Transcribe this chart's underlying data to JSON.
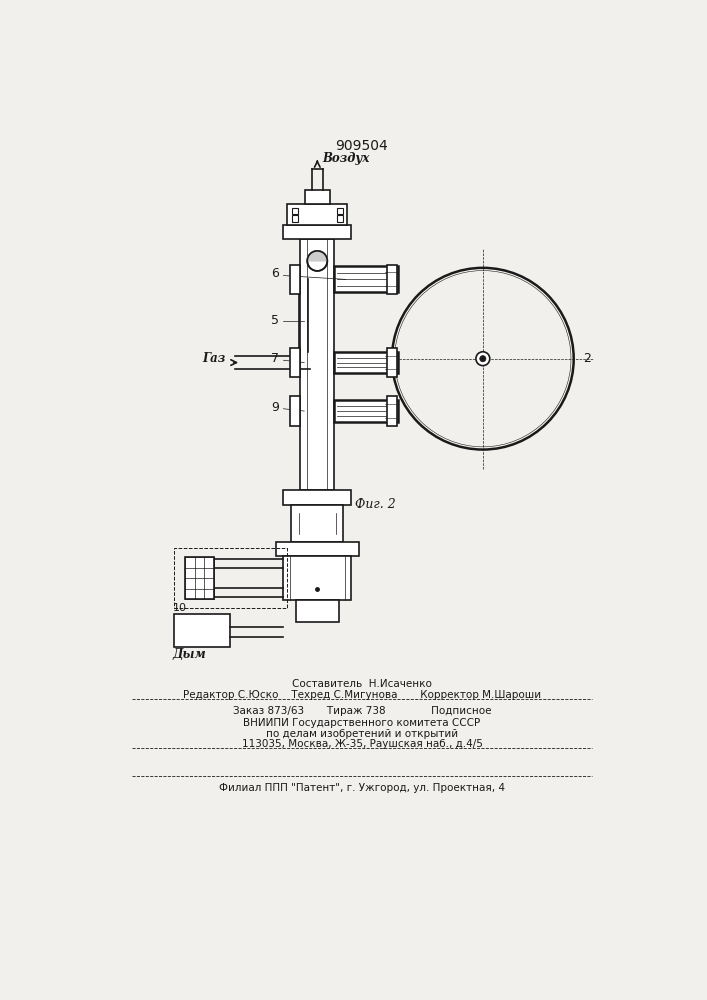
{
  "title": "909504",
  "fig_label": "Фиг. 2",
  "background_color": "#f2f0ed",
  "line_color": "#1a1a1a",
  "label_vozdukh": "Воздух",
  "label_gaz": "Газ",
  "label_dym": "Дым",
  "label_2": "2",
  "label_5": "5",
  "label_6": "6",
  "label_7": "7",
  "label_9": "9",
  "label_10": "10",
  "footer_line1": "Составитель  Н.Исаченко",
  "footer_line2": "Редактор С.Юско    Техред С.Мигунова       Корректор М.Шароши",
  "footer_line3": "Заказ 873/63       Тираж 738              Подписное",
  "footer_line4": "ВНИИПИ Государственного комитета СССР",
  "footer_line5": "по делам изобретений и открытий",
  "footer_line6": "113035, Москва, Ж-35, Раушская наб., д.4/5",
  "footer_line7": "Филиал ППП \"Патент\", г. Ужгород, ул. Проектная, 4"
}
